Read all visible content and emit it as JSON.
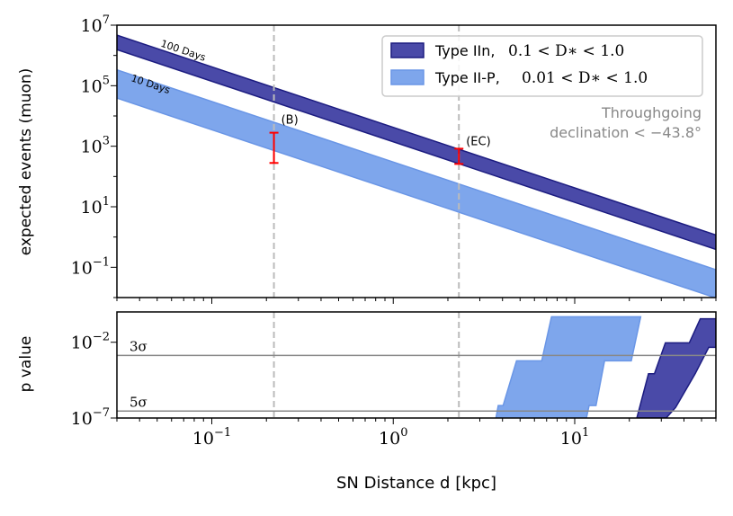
{
  "chart_data": [
    {
      "type": "area",
      "panel": "top",
      "xlabel": "SN Distance d [kpc]",
      "ylabel": "expected events (muon)",
      "xscale": "log",
      "yscale": "log",
      "xlim": [
        0.03,
        60
      ],
      "ylim": [
        0.01,
        10000000
      ],
      "x_ticks": [
        0.1,
        1,
        10
      ],
      "y_ticks": [
        10000000,
        100000,
        1000,
        10,
        0.1
      ],
      "y_tick_labels": [
        "10^7",
        "10^5",
        "10^3",
        "10^1",
        "10^-1"
      ],
      "series": [
        {
          "name": "Type IIn,   0.1 < D* < 1.0",
          "color": "#4a4aa8",
          "edge": "#1c1c80",
          "law": "N ∝ d^-2",
          "upper_at_1kpc": 4200,
          "lower_at_1kpc": 1400,
          "annotation": "100 Days"
        },
        {
          "name": "Type II-P,   0.01 < D* < 1.0",
          "color": "#7ea6ec",
          "edge": "#6a96e6",
          "law": "N ∝ d^-2",
          "upper_at_1kpc": 300,
          "lower_at_1kpc": 35,
          "annotation": "10 Days"
        }
      ],
      "vlines": [
        {
          "x": 0.22,
          "label": "(B)",
          "errorbar": [
            280,
            2800
          ]
        },
        {
          "x": 2.3,
          "label": "(EC)",
          "errorbar": [
            260,
            830
          ]
        }
      ],
      "note": [
        "Throughgoing",
        "declination < −43.8°"
      ],
      "legend": "top-right",
      "legend_entries": [
        {
          "label": "Type IIn,",
          "math": "0.1 < D∗ < 1.0"
        },
        {
          "label": "Type II-P,",
          "math": "0.01 < D∗ < 1.0"
        }
      ]
    },
    {
      "type": "area",
      "panel": "bottom",
      "ylabel": "p value",
      "xlabel": "SN Distance d [kpc]",
      "xscale": "log",
      "yscale": "log",
      "xlim": [
        0.03,
        60
      ],
      "ylim": [
        1e-07,
        1
      ],
      "x_ticks": [
        0.1,
        1,
        10
      ],
      "x_tick_labels": [
        "10^-1",
        "10^0",
        "10^1"
      ],
      "y_ticks": [
        0.01,
        1e-07
      ],
      "y_tick_labels": [
        "10^-2",
        "10^-7"
      ],
      "hlines": [
        {
          "y": 0.00135,
          "label": "3σ"
        },
        {
          "y": 2.87e-07,
          "label": "5σ"
        }
      ],
      "series": [
        {
          "name": "Type II-P",
          "color": "#7ea6ec",
          "edge": "#6a96e6",
          "polygon": [
            [
              3.68,
              1e-07
            ],
            [
              3.79,
              6.6e-07
            ],
            [
              4.03,
              6.6e-07
            ],
            [
              4.78,
              0.00059
            ],
            [
              6.58,
              0.00059
            ],
            [
              7.45,
              0.48
            ],
            [
              23.1,
              0.48
            ],
            [
              20.5,
              0.00059
            ],
            [
              14.6,
              0.00059
            ],
            [
              13.1,
              6.6e-07
            ],
            [
              12.0,
              6.6e-07
            ],
            [
              11.6,
              1e-07
            ]
          ]
        },
        {
          "name": "Type IIn",
          "color": "#4a4aa8",
          "edge": "#1c1c80",
          "polygon": [
            [
              22.0,
              1e-07
            ],
            [
              25.5,
              8.3e-05
            ],
            [
              27.5,
              8.3e-05
            ],
            [
              31.6,
              0.0091
            ],
            [
              42.8,
              0.0091
            ],
            [
              49.2,
              0.35
            ],
            [
              60,
              0.35
            ],
            [
              60,
              0.0046
            ],
            [
              54.8,
              0.0046
            ],
            [
              46.1,
              8.3e-05
            ],
            [
              36.0,
              5e-07
            ],
            [
              31.9,
              1e-07
            ]
          ]
        }
      ]
    }
  ]
}
